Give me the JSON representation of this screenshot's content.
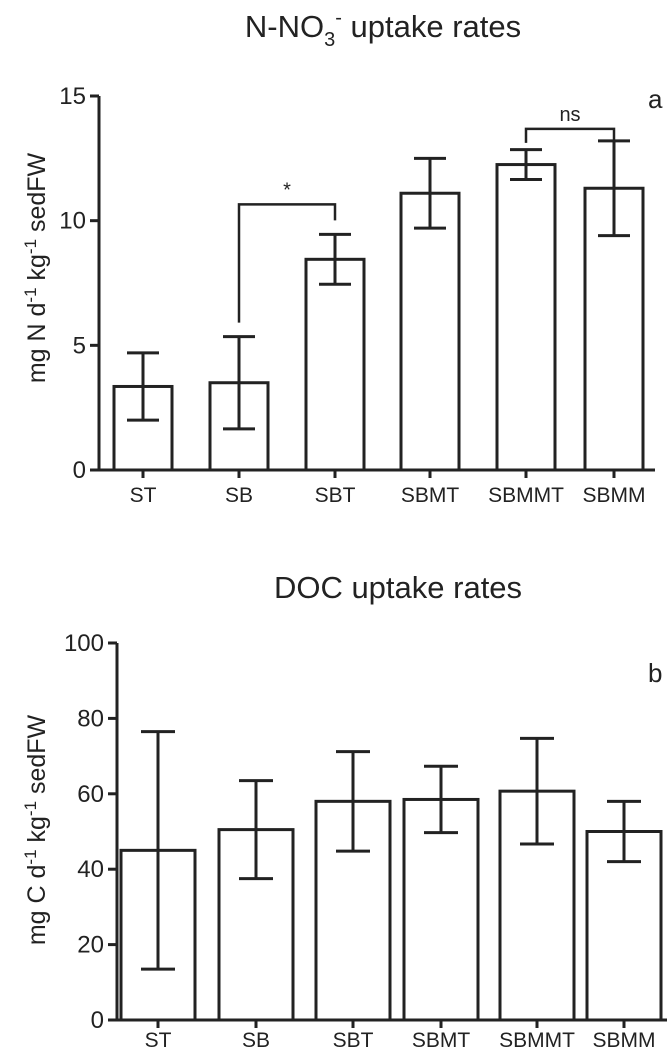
{
  "chart_data": [
    {
      "type": "bar",
      "panel_label": "a",
      "title": {
        "main": "N-NO",
        "sub": "3",
        "sup": "-",
        "rest": " uptake rates"
      },
      "ylabel": {
        "t1": "mg N d",
        "s1": "-1",
        "t2": " kg",
        "s2": "-1",
        "t3": " sedFW"
      },
      "ylim": [
        0,
        15
      ],
      "yticks": [
        0,
        5,
        10,
        15
      ],
      "categories": [
        "ST",
        "SB",
        "SBT",
        "SBMT",
        "SBMMT",
        "SBMM"
      ],
      "series": [
        {
          "values": [
            3.35,
            3.5,
            8.45,
            11.1,
            12.25,
            11.3
          ],
          "error": [
            1.35,
            1.85,
            1.0,
            1.4,
            0.6,
            1.9
          ]
        }
      ],
      "annotations": [
        {
          "text": "*",
          "from": "SB",
          "to": "SBT"
        },
        {
          "text": "ns",
          "from": "SBMMT",
          "to": "SBMM"
        }
      ],
      "grid": false,
      "legend": "none"
    },
    {
      "type": "bar",
      "panel_label": "b",
      "title": {
        "main": "DOC uptake rates"
      },
      "ylabel": {
        "t1": "mg C d",
        "s1": "-1",
        "t2": " kg",
        "s2": "-1",
        "t3": " sedFW"
      },
      "ylim": [
        0,
        100
      ],
      "yticks": [
        0,
        20,
        40,
        60,
        80,
        100
      ],
      "categories": [
        "ST",
        "SB",
        "SBT",
        "SBMT",
        "SBMMT",
        "SBMM"
      ],
      "series": [
        {
          "values": [
            45,
            50.5,
            58,
            58.5,
            60.7,
            50
          ],
          "error": [
            31.5,
            13,
            13.2,
            8.8,
            14,
            8
          ]
        }
      ],
      "grid": false,
      "legend": "none"
    }
  ],
  "colors": {
    "ink": "#222222",
    "bar_fill": "#ffffff"
  }
}
